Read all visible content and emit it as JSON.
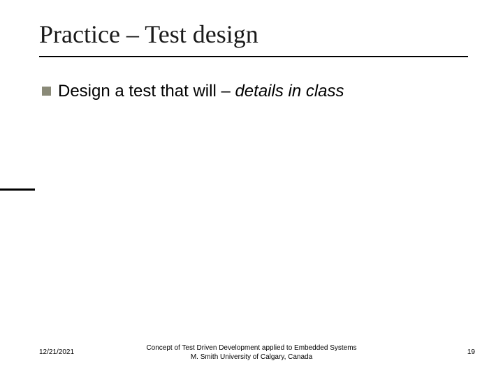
{
  "slide": {
    "title": "Practice – Test design",
    "title_color": "#1a1a1a",
    "title_fontsize": 36,
    "underline_color": "#000000",
    "sideline_color": "#000000",
    "bullet": {
      "marker_color": "#8a8a78",
      "text_plain": "Design a test that will – ",
      "text_italic": "details in class",
      "fontsize": 24
    },
    "footer": {
      "date": "12/21/2021",
      "center_line1": "Concept of Test Driven Development applied to Embedded Systems",
      "center_line2": "M. Smith University of Calgary, Canada",
      "page": "19",
      "fontsize": 10
    },
    "background": "#ffffff"
  }
}
